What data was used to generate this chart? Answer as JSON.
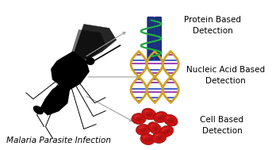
{
  "bg_color": "#ffffff",
  "mosquito_label": "Malaria Parasite Infection",
  "label_fontsize": 7.5,
  "mosquito_label_fontsize": 7.5,
  "protein_label": "Protein Based\nDetection",
  "dna_label": "Nucleic Acid Based\nDetection",
  "cell_label": "Cell Based\nDetection",
  "arrow_color": "#a0a0a0",
  "protein_blue": "#1a3080",
  "protein_green": "#22aa44",
  "dna_gold": "#d4a020",
  "dna_blue": "#3355cc",
  "dna_purple": "#9933aa",
  "dna_white": "#ffffff",
  "cell_red": "#cc1111",
  "cell_dark": "#881111",
  "cell_bright": "#ee3333"
}
